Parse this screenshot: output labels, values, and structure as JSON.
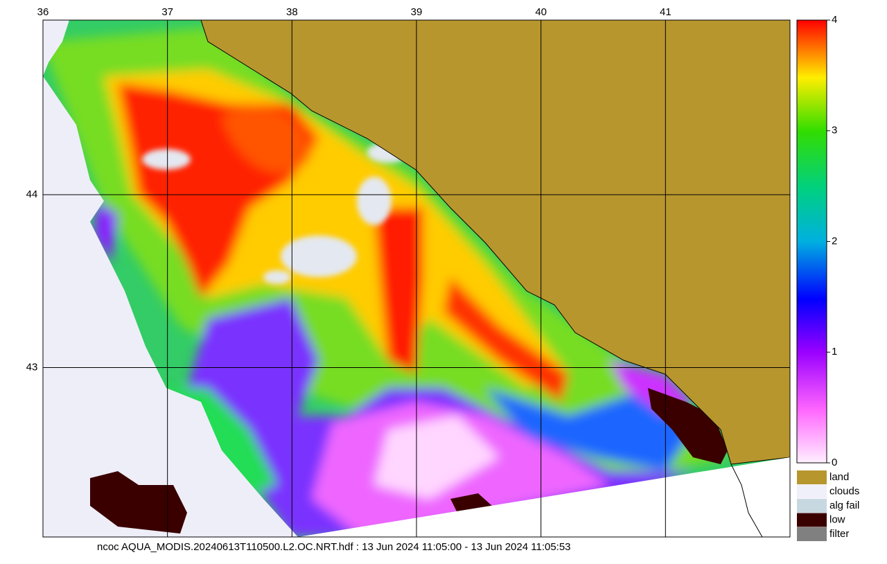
{
  "map": {
    "lon_lim": [
      36,
      42
    ],
    "lat_lim": [
      42.02,
      45.01
    ],
    "lon_ticks": [
      36,
      37,
      38,
      39,
      40,
      41
    ],
    "lat_ticks": [
      44,
      43
    ],
    "colorbar": {
      "lim": [
        0,
        4
      ],
      "ticks": [
        0,
        1,
        2,
        3,
        4
      ]
    },
    "legend": [
      {
        "label": "land",
        "color": "#b8962e"
      },
      {
        "label": "clouds",
        "color": "#f0f0fa"
      },
      {
        "label": "alg fail",
        "color": "#c8d8e0"
      },
      {
        "label": "low",
        "color": "#3a0000"
      },
      {
        "label": "filter",
        "color": "#808080"
      }
    ],
    "caption": "ncoc AQUA_MODIS.20240613T110500.L2.OC.NRT.hdf : 13 Jun 2024 11:05:00 - 13 Jun 2024 11:05:53"
  }
}
